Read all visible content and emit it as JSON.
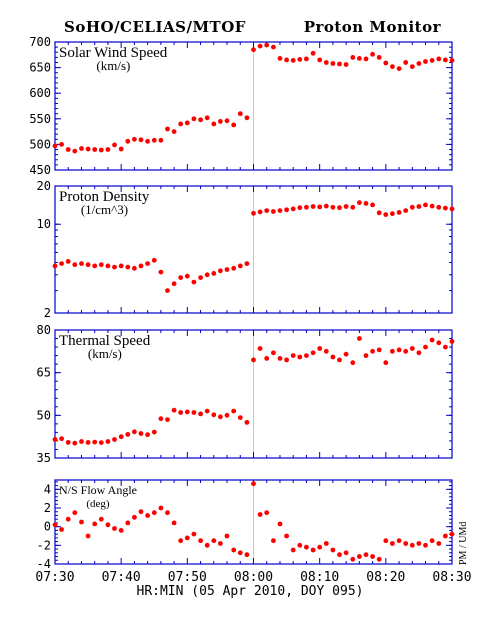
{
  "header": {
    "left": "SoHO/CELIAS/MTOF",
    "right": "Proton Monitor"
  },
  "side_note": "PM / UMd",
  "x_axis": {
    "label": "HR:MIN (05 Apr 2010, DOY 095)",
    "ticks": [
      "07:30",
      "07:40",
      "07:50",
      "08:00",
      "08:10",
      "08:20",
      "08:30"
    ]
  },
  "colors": {
    "axis": "#0000cc",
    "points": "#ff0000",
    "divider": "#c8c8c8",
    "text": "#000000"
  },
  "chart_data": [
    {
      "type": "scatter",
      "title": "Solar Wind Speed",
      "unit": "(km/s)",
      "xlim": [
        "07:30",
        "08:30"
      ],
      "ylim": [
        450,
        700
      ],
      "yscale": "linear",
      "yticks": [
        "450",
        "500",
        "550",
        "600",
        "650",
        "700"
      ],
      "x": [
        "07:30",
        "07:31",
        "07:32",
        "07:33",
        "07:34",
        "07:35",
        "07:36",
        "07:37",
        "07:38",
        "07:39",
        "07:40",
        "07:41",
        "07:42",
        "07:43",
        "07:44",
        "07:45",
        "07:46",
        "07:47",
        "07:48",
        "07:49",
        "07:50",
        "07:51",
        "07:52",
        "07:53",
        "07:54",
        "07:55",
        "07:56",
        "07:57",
        "07:58",
        "07:59",
        "08:00",
        "08:01",
        "08:02",
        "08:03",
        "08:04",
        "08:05",
        "08:06",
        "08:07",
        "08:08",
        "08:09",
        "08:10",
        "08:11",
        "08:12",
        "08:13",
        "08:14",
        "08:15",
        "08:16",
        "08:17",
        "08:18",
        "08:19",
        "08:20",
        "08:21",
        "08:22",
        "08:23",
        "08:24",
        "08:25",
        "08:26",
        "08:27",
        "08:28",
        "08:29",
        "08:30"
      ],
      "y": [
        497,
        500,
        490,
        487,
        492,
        491,
        490,
        489,
        490,
        499,
        491,
        506,
        510,
        509,
        506,
        508,
        508,
        530,
        525,
        540,
        542,
        550,
        548,
        552,
        540,
        545,
        546,
        538,
        560,
        552,
        685,
        692,
        694,
        690,
        668,
        665,
        664,
        666,
        667,
        678,
        665,
        660,
        658,
        657,
        656,
        670,
        668,
        667,
        676,
        670,
        659,
        652,
        648,
        660,
        652,
        658,
        662,
        664,
        667,
        665,
        664
      ]
    },
    {
      "type": "scatter",
      "title": "Proton Density",
      "unit": "(1/cm^3)",
      "xlim": [
        "07:30",
        "08:30"
      ],
      "ylim": [
        2,
        20
      ],
      "yscale": "log",
      "yticks": [
        "2",
        "10",
        "20"
      ],
      "x": [
        "07:30",
        "07:31",
        "07:32",
        "07:33",
        "07:34",
        "07:35",
        "07:36",
        "07:37",
        "07:38",
        "07:39",
        "07:40",
        "07:41",
        "07:42",
        "07:43",
        "07:44",
        "07:45",
        "07:46",
        "07:47",
        "07:48",
        "07:49",
        "07:50",
        "07:51",
        "07:52",
        "07:53",
        "07:54",
        "07:55",
        "07:56",
        "07:57",
        "07:58",
        "07:59",
        "08:00",
        "08:01",
        "08:02",
        "08:03",
        "08:04",
        "08:05",
        "08:06",
        "08:07",
        "08:08",
        "08:09",
        "08:10",
        "08:11",
        "08:12",
        "08:13",
        "08:14",
        "08:15",
        "08:16",
        "08:17",
        "08:18",
        "08:19",
        "08:20",
        "08:21",
        "08:22",
        "08:23",
        "08:24",
        "08:25",
        "08:26",
        "08:27",
        "08:28",
        "08:29",
        "08:30"
      ],
      "y": [
        4.7,
        4.9,
        5.1,
        4.8,
        4.9,
        4.8,
        4.7,
        4.8,
        4.7,
        4.6,
        4.7,
        4.6,
        4.5,
        4.7,
        4.9,
        5.2,
        4.2,
        3.0,
        3.4,
        3.8,
        3.9,
        3.5,
        3.8,
        4.0,
        4.1,
        4.3,
        4.4,
        4.5,
        4.7,
        4.9,
        12.2,
        12.5,
        12.8,
        12.6,
        12.8,
        13.0,
        13.2,
        13.5,
        13.6,
        13.8,
        13.7,
        13.9,
        13.6,
        13.5,
        13.8,
        13.6,
        14.8,
        14.6,
        14.2,
        12.3,
        11.9,
        12.1,
        12.4,
        12.8,
        13.6,
        13.8,
        14.2,
        13.9,
        13.6,
        13.4,
        13.2
      ]
    },
    {
      "type": "scatter",
      "title": "Thermal Speed",
      "unit": "(km/s)",
      "xlim": [
        "07:30",
        "08:30"
      ],
      "ylim": [
        35,
        80
      ],
      "yscale": "linear",
      "yticks": [
        "35",
        "50",
        "65",
        "80"
      ],
      "x": [
        "07:30",
        "07:31",
        "07:32",
        "07:33",
        "07:34",
        "07:35",
        "07:36",
        "07:37",
        "07:38",
        "07:39",
        "07:40",
        "07:41",
        "07:42",
        "07:43",
        "07:44",
        "07:45",
        "07:46",
        "07:47",
        "07:48",
        "07:49",
        "07:50",
        "07:51",
        "07:52",
        "07:53",
        "07:54",
        "07:55",
        "07:56",
        "07:57",
        "07:58",
        "07:59",
        "08:00",
        "08:01",
        "08:02",
        "08:03",
        "08:04",
        "08:05",
        "08:06",
        "08:07",
        "08:08",
        "08:09",
        "08:10",
        "08:11",
        "08:12",
        "08:13",
        "08:14",
        "08:15",
        "08:16",
        "08:17",
        "08:18",
        "08:19",
        "08:20",
        "08:21",
        "08:22",
        "08:23",
        "08:24",
        "08:25",
        "08:26",
        "08:27",
        "08:28",
        "08:29",
        "08:30"
      ],
      "y": [
        41.5,
        41.8,
        40.5,
        40.2,
        40.8,
        40.5,
        40.6,
        40.4,
        40.8,
        41.5,
        42.5,
        43.3,
        44.2,
        43.6,
        43.2,
        44.1,
        48.8,
        48.5,
        51.8,
        51.0,
        51.2,
        51.0,
        50.5,
        51.5,
        50.2,
        49.5,
        50.0,
        51.5,
        49.2,
        47.5,
        69.5,
        73.5,
        70.0,
        72.0,
        70.0,
        69.5,
        71.0,
        70.5,
        71.0,
        72.0,
        73.5,
        72.5,
        70.5,
        69.5,
        71.5,
        68.5,
        77.0,
        71.0,
        72.5,
        73.0,
        68.5,
        72.5,
        73.0,
        72.5,
        73.5,
        72.0,
        74.0,
        76.5,
        75.5,
        74.0,
        76.0
      ]
    },
    {
      "type": "scatter",
      "title": "N/S Flow Angle",
      "unit": "(deg)",
      "xlim": [
        "07:30",
        "08:30"
      ],
      "ylim": [
        -4,
        5
      ],
      "yscale": "linear",
      "yticks": [
        "-4",
        "-2",
        "0",
        "2",
        "4"
      ],
      "x": [
        "07:30",
        "07:31",
        "07:32",
        "07:33",
        "07:34",
        "07:35",
        "07:36",
        "07:37",
        "07:38",
        "07:39",
        "07:40",
        "07:41",
        "07:42",
        "07:43",
        "07:44",
        "07:45",
        "07:46",
        "07:47",
        "07:48",
        "07:49",
        "07:50",
        "07:51",
        "07:52",
        "07:53",
        "07:54",
        "07:55",
        "07:56",
        "07:57",
        "07:58",
        "07:59",
        "08:00",
        "08:01",
        "08:02",
        "08:03",
        "08:04",
        "08:05",
        "08:06",
        "08:07",
        "08:08",
        "08:09",
        "08:10",
        "08:11",
        "08:12",
        "08:13",
        "08:14",
        "08:15",
        "08:16",
        "08:17",
        "08:18",
        "08:19",
        "08:20",
        "08:21",
        "08:22",
        "08:23",
        "08:24",
        "08:25",
        "08:26",
        "08:27",
        "08:28",
        "08:29",
        "08:30"
      ],
      "y": [
        0.2,
        -0.3,
        0.8,
        1.5,
        0.5,
        -1.0,
        0.3,
        0.8,
        0.2,
        -0.2,
        -0.4,
        0.4,
        1.0,
        1.6,
        1.2,
        1.5,
        2.0,
        1.5,
        0.4,
        -1.5,
        -1.2,
        -0.8,
        -1.5,
        -2.0,
        -1.5,
        -1.8,
        -1.0,
        -2.5,
        -2.8,
        -3.0,
        4.6,
        1.3,
        1.5,
        -1.5,
        0.3,
        -1.0,
        -2.5,
        -2.0,
        -2.2,
        -2.5,
        -2.2,
        -1.8,
        -2.5,
        -3.0,
        -2.8,
        -3.5,
        -3.2,
        -3.0,
        -3.2,
        -3.5,
        -1.5,
        -1.8,
        -1.5,
        -1.8,
        -2.0,
        -1.8,
        -2.0,
        -1.5,
        -1.8,
        -1.0,
        -0.8
      ]
    }
  ]
}
